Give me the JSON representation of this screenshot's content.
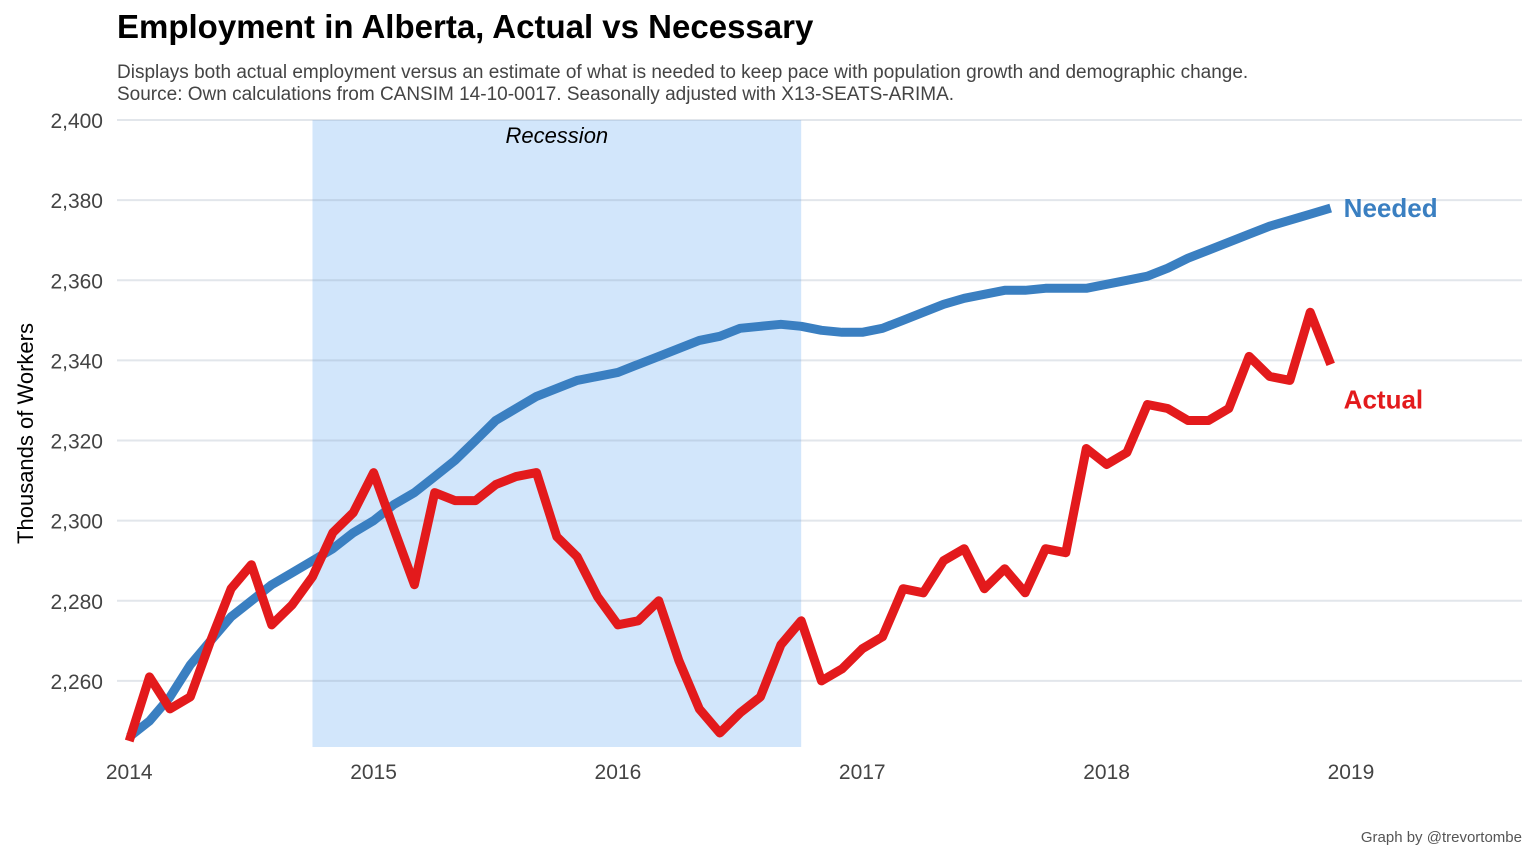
{
  "chart_data": {
    "type": "line",
    "title": "Employment in Alberta, Actual vs Necessary",
    "subtitle_lines": [
      "Displays both actual employment versus an estimate of what is needed to keep pace with population growth and demographic change.",
      "Source: Own calculations from CANSIM 14-10-0017. Seasonally adjusted with X13-SEATS-ARIMA."
    ],
    "caption": "Graph by @trevortombe",
    "ylabel": "Thousands of Workers",
    "xlabel": "",
    "xlim": [
      2013.95,
      2019.7
    ],
    "ylim": [
      2243.5,
      2400
    ],
    "x_ticks": [
      2014,
      2015,
      2016,
      2017,
      2018,
      2019
    ],
    "x_tick_labels": [
      "2014",
      "2015",
      "2016",
      "2017",
      "2018",
      "2019"
    ],
    "y_ticks": [
      2260,
      2280,
      2300,
      2320,
      2340,
      2360,
      2380,
      2400
    ],
    "y_tick_labels": [
      "2,260",
      "2,280",
      "2,300",
      "2,320",
      "2,340",
      "2,360",
      "2,380",
      "2,400"
    ],
    "grid": true,
    "annotation": {
      "label": "Recession",
      "x_start": 2014.75,
      "x_end": 2016.75,
      "color": "#d2e6fb"
    },
    "x": [
      2014.0,
      2014.083,
      2014.167,
      2014.25,
      2014.333,
      2014.417,
      2014.5,
      2014.583,
      2014.667,
      2014.75,
      2014.833,
      2014.917,
      2015.0,
      2015.083,
      2015.167,
      2015.25,
      2015.333,
      2015.417,
      2015.5,
      2015.583,
      2015.667,
      2015.75,
      2015.833,
      2015.917,
      2016.0,
      2016.083,
      2016.167,
      2016.25,
      2016.333,
      2016.417,
      2016.5,
      2016.583,
      2016.667,
      2016.75,
      2016.833,
      2016.917,
      2017.0,
      2017.083,
      2017.167,
      2017.25,
      2017.333,
      2017.417,
      2017.5,
      2017.583,
      2017.667,
      2017.75,
      2017.833,
      2017.917,
      2018.0,
      2018.083,
      2018.167,
      2018.25,
      2018.333,
      2018.417,
      2018.5,
      2018.583,
      2018.667,
      2018.75,
      2018.833,
      2018.917
    ],
    "series": [
      {
        "name": "Needed",
        "label": "Needed",
        "color": "#3a7fc1",
        "values": [
          2246,
          2250,
          2256,
          2264,
          2270,
          2276,
          2280,
          2284,
          2287,
          2290,
          2293,
          2297,
          2300,
          2304,
          2307,
          2311,
          2315,
          2320,
          2325,
          2328,
          2331,
          2333,
          2335,
          2336,
          2337,
          2339,
          2341,
          2343,
          2345,
          2346,
          2348,
          2348.5,
          2349,
          2348.5,
          2347.5,
          2347,
          2347,
          2348,
          2350,
          2352,
          2354,
          2355.5,
          2356.5,
          2357.5,
          2357.5,
          2358,
          2358,
          2358,
          2359,
          2360,
          2361,
          2363,
          2365.5,
          2367.5,
          2369.5,
          2371.5,
          2373.5,
          2375,
          2376.5,
          2378
        ]
      },
      {
        "name": "Actual",
        "label": "Actual",
        "color": "#e31a1c",
        "values": [
          2245,
          2261,
          2253,
          2256,
          2270,
          2283,
          2289,
          2274,
          2279,
          2286,
          2297,
          2302,
          2312,
          2298,
          2284,
          2307,
          2305,
          2305,
          2309,
          2311,
          2312,
          2296,
          2291,
          2281,
          2274,
          2275,
          2280,
          2265,
          2253,
          2247,
          2252,
          2256,
          2269,
          2275,
          2260,
          2263,
          2268,
          2271,
          2283,
          2282,
          2290,
          2293,
          2283,
          2288,
          2282,
          2293,
          2292,
          2318,
          2314,
          2317,
          2329,
          2328,
          2325,
          2325,
          2328,
          2341,
          2336,
          2335,
          2352,
          2339
        ]
      }
    ]
  }
}
